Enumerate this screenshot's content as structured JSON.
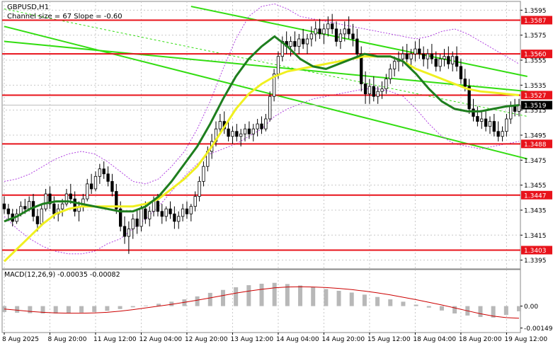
{
  "header": {
    "symbol": "GBPUSD,H1",
    "channel_info": "Channel size = 67 Slope = -0.60"
  },
  "macd": {
    "label": "MACD(12,26,9) -0.00035 -0.00082",
    "ticks": [
      {
        "label": "0.00",
        "value": 0.0
      },
      {
        "label": "-0.00149",
        "value": -0.00149
      }
    ]
  },
  "colors": {
    "level": "#e8131b",
    "channel": "#33dd11",
    "ma_fast": "#1e7e1e",
    "ma_slow": "#f0f020",
    "bollinger": "#b040e0",
    "candle": "#000000",
    "macd_hist": "#b8b8b8",
    "macd_signal": "#cc0000",
    "grid": "#c8c8c8"
  },
  "chart_data": {
    "type": "candlestick",
    "symbol": "GBPUSD",
    "timeframe": "H1",
    "ylim": [
      1.3388,
      1.3602
    ],
    "y_ticks": [
      "1.3595",
      "1.3575",
      "1.3555",
      "1.3535",
      "1.3515",
      "1.3495",
      "1.3475",
      "1.3455",
      "1.3435",
      "1.3415",
      "1.3395"
    ],
    "x_ticks": [
      "8 Aug 2025",
      "8 Aug 20:00",
      "11 Aug 12:00",
      "12 Aug 04:00",
      "12 Aug 20:00",
      "13 Aug 12:00",
      "14 Aug 04:00",
      "14 Aug 20:00",
      "15 Aug 12:00",
      "18 Aug 04:00",
      "18 Aug 20:00",
      "19 Aug 12:00"
    ],
    "levels": [
      {
        "label": "1.3587",
        "value": 1.3587
      },
      {
        "label": "1.3560",
        "value": 1.356
      },
      {
        "label": "1.3527",
        "value": 1.3527
      },
      {
        "label": "1.3488",
        "value": 1.3488
      },
      {
        "label": "1.3447",
        "value": 1.3447
      },
      {
        "label": "1.3403",
        "value": 1.3403
      }
    ],
    "current_price": {
      "label": "1.3519",
      "value": 1.3519
    },
    "candles": [
      [
        1.344,
        1.3446,
        1.3432,
        1.3436
      ],
      [
        1.3436,
        1.344,
        1.3428,
        1.3432
      ],
      [
        1.3432,
        1.3436,
        1.3422,
        1.3426
      ],
      [
        1.3426,
        1.3436,
        1.3424,
        1.3432
      ],
      [
        1.3432,
        1.3442,
        1.343,
        1.3438
      ],
      [
        1.3438,
        1.3444,
        1.3432,
        1.3436
      ],
      [
        1.3436,
        1.3446,
        1.3434,
        1.3442
      ],
      [
        1.3442,
        1.3448,
        1.3426,
        1.343
      ],
      [
        1.343,
        1.3436,
        1.3418,
        1.3424
      ],
      [
        1.3424,
        1.344,
        1.3422,
        1.3436
      ],
      [
        1.3436,
        1.3452,
        1.3434,
        1.3448
      ],
      [
        1.3448,
        1.3454,
        1.3436,
        1.344
      ],
      [
        1.344,
        1.3446,
        1.3428,
        1.3432
      ],
      [
        1.3432,
        1.344,
        1.3426,
        1.3436
      ],
      [
        1.3436,
        1.3444,
        1.343,
        1.344
      ],
      [
        1.344,
        1.3452,
        1.3438,
        1.3448
      ],
      [
        1.3448,
        1.3456,
        1.344,
        1.3444
      ],
      [
        1.3444,
        1.345,
        1.343,
        1.3434
      ],
      [
        1.3434,
        1.3442,
        1.3426,
        1.3438
      ],
      [
        1.3438,
        1.3448,
        1.3434,
        1.3444
      ],
      [
        1.3444,
        1.346,
        1.3442,
        1.3456
      ],
      [
        1.3456,
        1.3464,
        1.3448,
        1.3452
      ],
      [
        1.3452,
        1.3466,
        1.345,
        1.3462
      ],
      [
        1.3462,
        1.3472,
        1.3456,
        1.3468
      ],
      [
        1.3468,
        1.3474,
        1.346,
        1.3464
      ],
      [
        1.3464,
        1.347,
        1.3454,
        1.3458
      ],
      [
        1.3458,
        1.3464,
        1.3446,
        1.345
      ],
      [
        1.345,
        1.3456,
        1.3432,
        1.3436
      ],
      [
        1.3436,
        1.3442,
        1.3418,
        1.3422
      ],
      [
        1.3422,
        1.343,
        1.3408,
        1.3414
      ],
      [
        1.3414,
        1.3426,
        1.34,
        1.342
      ],
      [
        1.342,
        1.3432,
        1.3412,
        1.3428
      ],
      [
        1.3428,
        1.3436,
        1.3416,
        1.3422
      ],
      [
        1.3422,
        1.344,
        1.3418,
        1.3436
      ],
      [
        1.3436,
        1.3442,
        1.3424,
        1.3428
      ],
      [
        1.3428,
        1.3438,
        1.3422,
        1.3434
      ],
      [
        1.3434,
        1.3446,
        1.343,
        1.3442
      ],
      [
        1.3442,
        1.3448,
        1.343,
        1.3434
      ],
      [
        1.3434,
        1.344,
        1.3424,
        1.343
      ],
      [
        1.343,
        1.3438,
        1.3426,
        1.3436
      ],
      [
        1.3436,
        1.3442,
        1.3428,
        1.3432
      ],
      [
        1.3432,
        1.3438,
        1.342,
        1.3426
      ],
      [
        1.3426,
        1.3434,
        1.342,
        1.343
      ],
      [
        1.343,
        1.344,
        1.3426,
        1.3436
      ],
      [
        1.3436,
        1.3442,
        1.3428,
        1.3432
      ],
      [
        1.3432,
        1.344,
        1.3426,
        1.3438
      ],
      [
        1.3438,
        1.345,
        1.3434,
        1.3446
      ],
      [
        1.3446,
        1.3462,
        1.3442,
        1.3458
      ],
      [
        1.3458,
        1.3474,
        1.3454,
        1.347
      ],
      [
        1.347,
        1.3486,
        1.3466,
        1.3482
      ],
      [
        1.3482,
        1.3496,
        1.3476,
        1.349
      ],
      [
        1.349,
        1.3506,
        1.3486,
        1.35
      ],
      [
        1.35,
        1.3512,
        1.3496,
        1.3506
      ],
      [
        1.3506,
        1.3514,
        1.3496,
        1.35
      ],
      [
        1.35,
        1.3506,
        1.349,
        1.3494
      ],
      [
        1.3494,
        1.3502,
        1.3488,
        1.3498
      ],
      [
        1.3498,
        1.3504,
        1.349,
        1.3494
      ],
      [
        1.3494,
        1.35,
        1.3486,
        1.3496
      ],
      [
        1.3496,
        1.3504,
        1.349,
        1.35
      ],
      [
        1.35,
        1.3506,
        1.3492,
        1.3496
      ],
      [
        1.3496,
        1.3504,
        1.349,
        1.35
      ],
      [
        1.35,
        1.3508,
        1.3494,
        1.3504
      ],
      [
        1.3504,
        1.351,
        1.3496,
        1.35
      ],
      [
        1.35,
        1.3512,
        1.3498,
        1.3508
      ],
      [
        1.3508,
        1.353,
        1.3506,
        1.3526
      ],
      [
        1.3526,
        1.3548,
        1.3522,
        1.3544
      ],
      [
        1.3544,
        1.3562,
        1.354,
        1.3558
      ],
      [
        1.3558,
        1.3574,
        1.3554,
        1.357
      ],
      [
        1.357,
        1.3578,
        1.356,
        1.3566
      ],
      [
        1.3566,
        1.3574,
        1.3558,
        1.357
      ],
      [
        1.357,
        1.3578,
        1.3562,
        1.3566
      ],
      [
        1.3566,
        1.3576,
        1.356,
        1.3572
      ],
      [
        1.3572,
        1.358,
        1.3564,
        1.3568
      ],
      [
        1.3568,
        1.3576,
        1.356,
        1.3572
      ],
      [
        1.3572,
        1.3582,
        1.3566,
        1.3576
      ],
      [
        1.3576,
        1.3586,
        1.357,
        1.358
      ],
      [
        1.358,
        1.3588,
        1.3572,
        1.3576
      ],
      [
        1.3576,
        1.3584,
        1.3568,
        1.358
      ],
      [
        1.358,
        1.359,
        1.3574,
        1.3584
      ],
      [
        1.3584,
        1.3592,
        1.3576,
        1.358
      ],
      [
        1.358,
        1.3586,
        1.3566,
        1.357
      ],
      [
        1.357,
        1.358,
        1.3564,
        1.3576
      ],
      [
        1.3576,
        1.3586,
        1.357,
        1.358
      ],
      [
        1.358,
        1.359,
        1.3572,
        1.3576
      ],
      [
        1.3576,
        1.3584,
        1.3566,
        1.3572
      ],
      [
        1.3572,
        1.358,
        1.3556,
        1.356
      ],
      [
        1.356,
        1.3566,
        1.353,
        1.3536
      ],
      [
        1.3536,
        1.3546,
        1.352,
        1.3528
      ],
      [
        1.3528,
        1.354,
        1.352,
        1.3534
      ],
      [
        1.3534,
        1.3542,
        1.3522,
        1.3526
      ],
      [
        1.3526,
        1.3534,
        1.352,
        1.353
      ],
      [
        1.353,
        1.3538,
        1.3524,
        1.3532
      ],
      [
        1.3532,
        1.3544,
        1.3528,
        1.354
      ],
      [
        1.354,
        1.3552,
        1.3536,
        1.3548
      ],
      [
        1.3548,
        1.3558,
        1.3542,
        1.3554
      ],
      [
        1.3554,
        1.3562,
        1.3546,
        1.3556
      ],
      [
        1.3556,
        1.3566,
        1.355,
        1.356
      ],
      [
        1.356,
        1.3568,
        1.3552,
        1.3556
      ],
      [
        1.3556,
        1.3564,
        1.3548,
        1.356
      ],
      [
        1.356,
        1.357,
        1.3554,
        1.3564
      ],
      [
        1.3564,
        1.3572,
        1.3556,
        1.356
      ],
      [
        1.356,
        1.3566,
        1.355,
        1.3556
      ],
      [
        1.3556,
        1.3564,
        1.3548,
        1.356
      ],
      [
        1.356,
        1.3568,
        1.3552,
        1.3556
      ],
      [
        1.3556,
        1.3562,
        1.3546,
        1.355
      ],
      [
        1.355,
        1.356,
        1.3546,
        1.3556
      ],
      [
        1.3556,
        1.3564,
        1.355,
        1.3558
      ],
      [
        1.3558,
        1.3566,
        1.3548,
        1.3552
      ],
      [
        1.3552,
        1.3562,
        1.3546,
        1.3558
      ],
      [
        1.3558,
        1.3566,
        1.3546,
        1.355
      ],
      [
        1.355,
        1.3556,
        1.3536,
        1.354
      ],
      [
        1.354,
        1.3548,
        1.353,
        1.3534
      ],
      [
        1.3534,
        1.354,
        1.3512,
        1.3516
      ],
      [
        1.3516,
        1.3524,
        1.3506,
        1.351
      ],
      [
        1.351,
        1.3518,
        1.3502,
        1.3506
      ],
      [
        1.3506,
        1.3514,
        1.35,
        1.3508
      ],
      [
        1.3508,
        1.3514,
        1.3498,
        1.3502
      ],
      [
        1.3502,
        1.351,
        1.3496,
        1.3506
      ],
      [
        1.3506,
        1.3512,
        1.3494,
        1.3498
      ],
      [
        1.3498,
        1.3506,
        1.349,
        1.3494
      ],
      [
        1.3494,
        1.3502,
        1.349,
        1.3498
      ],
      [
        1.3498,
        1.3512,
        1.3494,
        1.3508
      ],
      [
        1.3508,
        1.3522,
        1.3504,
        1.3518
      ],
      [
        1.3518,
        1.3524,
        1.351,
        1.3514
      ],
      [
        1.3514,
        1.3524,
        1.351,
        1.3519
      ]
    ],
    "bollinger_upper": [
      1.3458,
      1.346,
      1.3464,
      1.347,
      1.3476,
      1.348,
      1.3482,
      1.348,
      1.3474,
      1.3466,
      1.3458,
      1.3456,
      1.346,
      1.347,
      1.3482,
      1.35,
      1.3522,
      1.3548,
      1.3572,
      1.359,
      1.3598,
      1.36,
      1.3596,
      1.359,
      1.3588,
      1.3586,
      1.3584,
      1.3582,
      1.358,
      1.3578,
      1.3576,
      1.3574,
      1.3572,
      1.3574,
      1.3578,
      1.358,
      1.3576,
      1.357,
      1.3564,
      1.3558,
      1.3552
    ],
    "bollinger_lower": [
      1.343,
      1.342,
      1.3412,
      1.3406,
      1.3402,
      1.34,
      1.34,
      1.3402,
      1.3408,
      1.3412,
      1.342,
      1.3428,
      1.3438,
      1.345,
      1.3462,
      1.3472,
      1.348,
      1.3484,
      1.3488,
      1.3494,
      1.35,
      1.351,
      1.3516,
      1.352,
      1.3524,
      1.3526,
      1.3528,
      1.353,
      1.3532,
      1.3532,
      1.353,
      1.3526,
      1.3516,
      1.3504,
      1.3494,
      1.3488,
      1.3486,
      1.3484,
      1.3486,
      1.3488,
      1.349
    ],
    "ma_fast": [
      1.3426,
      1.343,
      1.3436,
      1.344,
      1.3442,
      1.3442,
      1.344,
      1.3438,
      1.3436,
      1.3434,
      1.3434,
      1.3438,
      1.3446,
      1.3458,
      1.3472,
      1.3486,
      1.3504,
      1.3524,
      1.3542,
      1.3556,
      1.3566,
      1.3574,
      1.3566,
      1.3556,
      1.355,
      1.3548,
      1.3552,
      1.3556,
      1.356,
      1.3558,
      1.3558,
      1.3554,
      1.3544,
      1.3532,
      1.3522,
      1.3516,
      1.3514,
      1.3514,
      1.3516,
      1.3518,
      1.3519
    ],
    "ma_slow": [
      1.3394,
      1.3404,
      1.3414,
      1.3424,
      1.3432,
      1.3436,
      1.3438,
      1.3438,
      1.3438,
      1.3438,
      1.3438,
      1.344,
      1.3444,
      1.3452,
      1.346,
      1.347,
      1.3484,
      1.35,
      1.3516,
      1.3528,
      1.3536,
      1.3542,
      1.3546,
      1.3548,
      1.355,
      1.3552,
      1.3554,
      1.3556,
      1.3558,
      1.3558,
      1.3558,
      1.3554,
      1.3548,
      1.3544,
      1.354,
      1.3536,
      1.3532,
      1.353,
      1.3529,
      1.3528,
      1.3527
    ],
    "channel_lines": [
      {
        "name": "channel-upper",
        "from": [
          0,
          1.357
        ],
        "to": [
          126,
          1.353
        ]
      },
      {
        "name": "channel-lower",
        "from": [
          0,
          1.3582
        ],
        "to": [
          126,
          1.3476
        ]
      },
      {
        "name": "channel-outer",
        "from": [
          45,
          1.3598
        ],
        "to": [
          126,
          1.3542
        ]
      },
      {
        "name": "channel-mid-dotted",
        "from": [
          0,
          1.3596
        ],
        "to": [
          126,
          1.351
        ]
      }
    ],
    "macd_histogram": [
      -0.0004,
      -0.00045,
      -0.00048,
      -0.0005,
      -0.0005,
      -0.00048,
      -0.00044,
      -0.0004,
      -0.00032,
      -0.0002,
      -8e-05,
      4e-05,
      0.00016,
      0.0003,
      0.00046,
      0.00066,
      0.0009,
      0.0011,
      0.00128,
      0.00142,
      0.00152,
      0.00158,
      0.0015,
      0.0014,
      0.00128,
      0.00116,
      0.00104,
      0.00092,
      0.00078,
      0.00062,
      0.00046,
      0.0003,
      0.0001,
      -0.0001,
      -0.0003,
      -0.0005,
      -0.00064,
      -0.00074,
      -0.00078,
      -0.0006,
      -0.00035
    ],
    "macd_signal": [
      -0.0002,
      -0.00028,
      -0.00036,
      -0.00042,
      -0.00046,
      -0.00048,
      -0.00048,
      -0.00046,
      -0.00042,
      -0.00034,
      -0.00024,
      -0.00012,
      0.0,
      0.00012,
      0.00026,
      0.0004,
      0.00056,
      0.00072,
      0.00088,
      0.00102,
      0.00114,
      0.00124,
      0.0013,
      0.00132,
      0.0013,
      0.00126,
      0.0012,
      0.00112,
      0.00102,
      0.0009,
      0.00076,
      0.0006,
      0.00044,
      0.00026,
      8e-05,
      -0.00012,
      -0.00032,
      -0.00052,
      -0.00068,
      -0.00078,
      -0.00082
    ]
  }
}
